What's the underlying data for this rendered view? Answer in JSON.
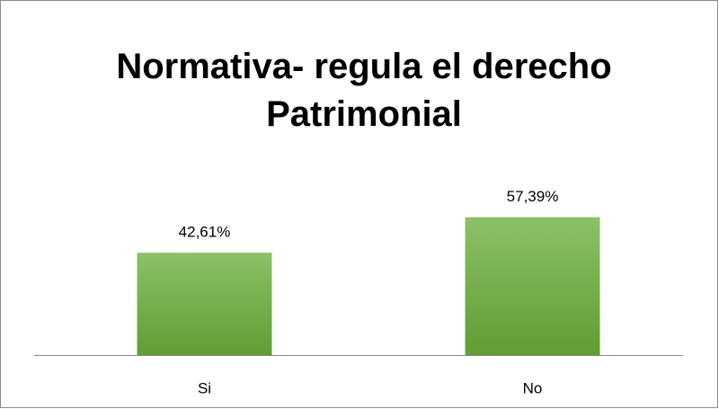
{
  "chart_data": {
    "type": "bar",
    "title": "Normativa- regula el derecho Patrimonial",
    "categories": [
      "Si",
      "No"
    ],
    "values": [
      42.61,
      57.39
    ],
    "value_labels": [
      "42,61%",
      "57,39%"
    ],
    "color": "#72b043",
    "ylim": [
      0,
      70
    ]
  }
}
